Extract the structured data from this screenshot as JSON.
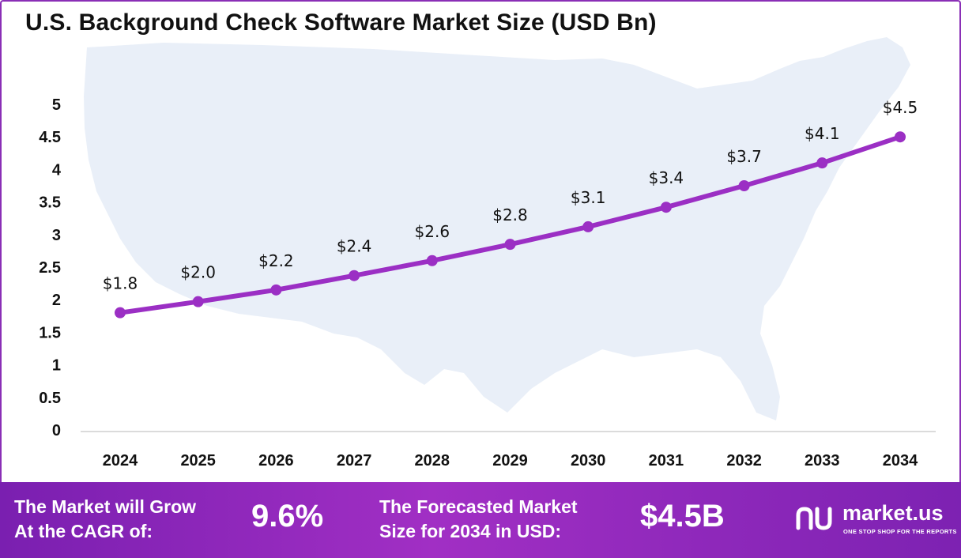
{
  "chart_data": {
    "type": "line",
    "title": "U.S. Background Check Software Market Size (USD Bn)",
    "categories": [
      "2024",
      "2025",
      "2026",
      "2027",
      "2028",
      "2029",
      "2030",
      "2031",
      "2032",
      "2033",
      "2034"
    ],
    "values": [
      1.8,
      1.97,
      2.15,
      2.37,
      2.6,
      2.85,
      3.12,
      3.42,
      3.75,
      4.1,
      4.5
    ],
    "data_labels": [
      "$1.8",
      "$2.0",
      "$2.2",
      "$2.4",
      "$2.6",
      "$2.8",
      "$3.1",
      "$3.4",
      "$3.7",
      "$4.1",
      "$4.5"
    ],
    "y_ticks": [
      "0",
      "0.5",
      "1",
      "1.5",
      "2",
      "2.5",
      "3",
      "3.5",
      "4",
      "4.5",
      "5"
    ],
    "ylim": [
      0,
      5
    ],
    "grid": false,
    "legend": "none",
    "line_color": "#9b2fc4"
  },
  "footer": {
    "cagr_label_line1": "The Market will Grow",
    "cagr_label_line2": "At the CAGR of:",
    "cagr_value": "9.6%",
    "forecast_label_line1": "The Forecasted Market",
    "forecast_label_line2": "Size for 2034 in USD:",
    "forecast_value": "$4.5B"
  },
  "brand": {
    "name": "market.us",
    "tagline": "ONE STOP SHOP FOR THE REPORTS",
    "logo_icon": "market-us-logo-icon"
  },
  "colors": {
    "accent": "#8a2fb6",
    "footer_bg": "#9a2bbf",
    "map_bg": "#e8eef8"
  }
}
